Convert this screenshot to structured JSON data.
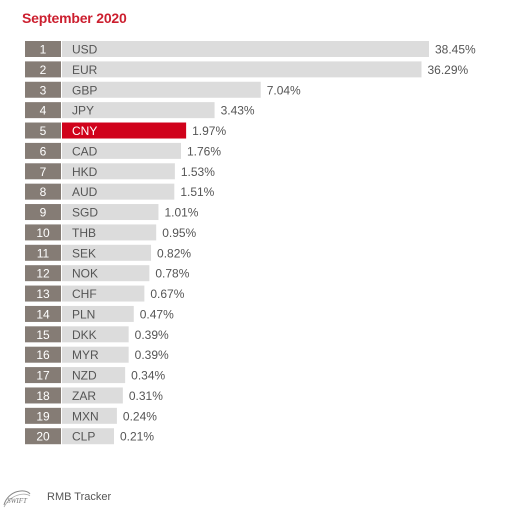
{
  "title": "September 2020",
  "footer": {
    "logo_text": "SWIFT",
    "label": "RMB Tracker"
  },
  "colors": {
    "bar": "#dcdcdc",
    "highlight": "#d0021b",
    "rank_box": "#857c75",
    "title": "#cc1f2f"
  },
  "chart_data": {
    "type": "bar",
    "orientation": "horizontal",
    "title": "September 2020",
    "highlight": "CNY",
    "ranks": [
      "1",
      "2",
      "3",
      "4",
      "5",
      "6",
      "7",
      "8",
      "9",
      "10",
      "11",
      "12",
      "13",
      "14",
      "15",
      "16",
      "17",
      "18",
      "19",
      "20"
    ],
    "categories": [
      "USD",
      "EUR",
      "GBP",
      "JPY",
      "CNY",
      "CAD",
      "HKD",
      "AUD",
      "SGD",
      "THB",
      "SEK",
      "NOK",
      "CHF",
      "PLN",
      "DKK",
      "MYR",
      "NZD",
      "ZAR",
      "MXN",
      "CLP"
    ],
    "values": [
      38.45,
      36.29,
      7.04,
      3.43,
      1.97,
      1.76,
      1.53,
      1.51,
      1.01,
      0.95,
      0.82,
      0.78,
      0.67,
      0.47,
      0.39,
      0.39,
      0.34,
      0.31,
      0.24,
      0.21
    ],
    "value_labels": [
      "38.45%",
      "36.29%",
      "7.04%",
      "3.43%",
      "1.97%",
      "1.76%",
      "1.53%",
      "1.51%",
      "1.01%",
      "0.95%",
      "0.82%",
      "0.78%",
      "0.67%",
      "0.47%",
      "0.39%",
      "0.39%",
      "0.34%",
      "0.31%",
      "0.24%",
      "0.21%"
    ],
    "scale": "non-linear (not proportional)"
  }
}
